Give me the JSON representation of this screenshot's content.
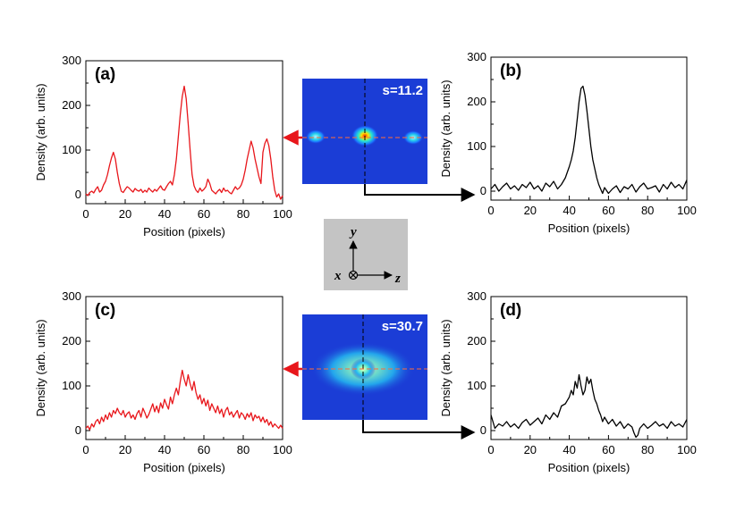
{
  "chart_data": [
    {
      "type": "line",
      "panel_label": "(a)",
      "color": "#e8161b",
      "xlabel": "Position (pixels)",
      "ylabel": "Density (arb. units)",
      "xlim": [
        0,
        100
      ],
      "ylim": [
        -20,
        300
      ],
      "xticks": [
        0,
        20,
        40,
        60,
        80,
        100
      ],
      "yticks": [
        0,
        100,
        200,
        300
      ],
      "x": [
        0,
        1,
        2,
        3,
        4,
        5,
        6,
        7,
        8,
        9,
        10,
        11,
        12,
        13,
        14,
        15,
        16,
        17,
        18,
        19,
        20,
        21,
        22,
        23,
        24,
        25,
        26,
        27,
        28,
        29,
        30,
        31,
        32,
        33,
        34,
        35,
        36,
        37,
        38,
        39,
        40,
        41,
        42,
        43,
        44,
        45,
        46,
        47,
        48,
        49,
        50,
        51,
        52,
        53,
        54,
        55,
        56,
        57,
        58,
        59,
        60,
        61,
        62,
        63,
        64,
        65,
        66,
        67,
        68,
        69,
        70,
        71,
        72,
        73,
        74,
        75,
        76,
        77,
        78,
        79,
        80,
        81,
        82,
        83,
        84,
        85,
        86,
        87,
        88,
        89,
        90,
        91,
        92,
        93,
        94,
        95,
        96,
        97,
        98,
        99,
        100
      ],
      "y": [
        2,
        -2,
        5,
        8,
        4,
        12,
        18,
        6,
        10,
        22,
        30,
        45,
        65,
        82,
        95,
        80,
        50,
        25,
        8,
        5,
        12,
        18,
        15,
        10,
        6,
        14,
        10,
        8,
        12,
        5,
        10,
        6,
        15,
        10,
        6,
        12,
        8,
        14,
        20,
        12,
        10,
        18,
        25,
        30,
        22,
        45,
        80,
        130,
        180,
        220,
        243,
        215,
        160,
        100,
        45,
        20,
        10,
        5,
        15,
        8,
        12,
        18,
        35,
        25,
        10,
        6,
        2,
        8,
        12,
        5,
        15,
        8,
        10,
        5,
        2,
        10,
        18,
        12,
        15,
        22,
        35,
        55,
        80,
        100,
        120,
        105,
        80,
        60,
        40,
        25,
        95,
        115,
        125,
        110,
        80,
        40,
        10,
        -5,
        2,
        -10,
        -2
      ]
    },
    {
      "type": "line",
      "panel_label": "(b)",
      "color": "#000000",
      "xlabel": "Position (pixels)",
      "ylabel": "Density (arb. units)",
      "xlim": [
        0,
        100
      ],
      "ylim": [
        -20,
        300
      ],
      "xticks": [
        0,
        20,
        40,
        60,
        80,
        100
      ],
      "yticks": [
        0,
        100,
        200,
        300
      ],
      "x": [
        0,
        2,
        4,
        6,
        8,
        10,
        12,
        14,
        16,
        18,
        20,
        22,
        24,
        26,
        28,
        30,
        32,
        34,
        36,
        38,
        40,
        41,
        42,
        43,
        44,
        45,
        46,
        47,
        48,
        49,
        50,
        51,
        52,
        53,
        54,
        55,
        56,
        57,
        58,
        60,
        62,
        64,
        66,
        68,
        70,
        72,
        74,
        76,
        78,
        80,
        82,
        84,
        86,
        88,
        90,
        92,
        94,
        96,
        98,
        100
      ],
      "y": [
        5,
        15,
        0,
        10,
        18,
        5,
        12,
        2,
        15,
        8,
        20,
        5,
        12,
        0,
        18,
        10,
        22,
        5,
        15,
        30,
        55,
        70,
        90,
        120,
        160,
        200,
        230,
        235,
        215,
        180,
        140,
        100,
        70,
        50,
        30,
        15,
        5,
        -5,
        8,
        -5,
        5,
        12,
        -3,
        10,
        5,
        15,
        -2,
        10,
        18,
        5,
        8,
        12,
        -2,
        15,
        5,
        20,
        8,
        15,
        5,
        25
      ]
    },
    {
      "type": "line",
      "panel_label": "(c)",
      "color": "#e8161b",
      "xlabel": "Position (pixels)",
      "ylabel": "Density (arb. units)",
      "xlim": [
        0,
        100
      ],
      "ylim": [
        -20,
        300
      ],
      "xticks": [
        0,
        20,
        40,
        60,
        80,
        100
      ],
      "yticks": [
        0,
        100,
        200,
        300
      ],
      "x": [
        0,
        1,
        2,
        3,
        4,
        5,
        6,
        7,
        8,
        9,
        10,
        11,
        12,
        13,
        14,
        15,
        16,
        17,
        18,
        19,
        20,
        21,
        22,
        23,
        24,
        25,
        26,
        27,
        28,
        29,
        30,
        31,
        32,
        33,
        34,
        35,
        36,
        37,
        38,
        39,
        40,
        41,
        42,
        43,
        44,
        45,
        46,
        47,
        48,
        49,
        50,
        51,
        52,
        53,
        54,
        55,
        56,
        57,
        58,
        59,
        60,
        61,
        62,
        63,
        64,
        65,
        66,
        67,
        68,
        69,
        70,
        71,
        72,
        73,
        74,
        75,
        76,
        77,
        78,
        79,
        80,
        81,
        82,
        83,
        84,
        85,
        86,
        87,
        88,
        89,
        90,
        91,
        92,
        93,
        94,
        95,
        96,
        97,
        98,
        99,
        100
      ],
      "y": [
        5,
        10,
        2,
        15,
        8,
        20,
        25,
        15,
        30,
        20,
        35,
        25,
        40,
        30,
        45,
        38,
        50,
        40,
        35,
        45,
        30,
        38,
        42,
        28,
        35,
        25,
        38,
        45,
        30,
        50,
        40,
        28,
        36,
        48,
        60,
        42,
        55,
        40,
        62,
        50,
        70,
        58,
        48,
        75,
        60,
        80,
        95,
        80,
        110,
        135,
        115,
        100,
        125,
        105,
        90,
        110,
        85,
        70,
        80,
        60,
        72,
        55,
        68,
        45,
        60,
        50,
        40,
        55,
        38,
        48,
        30,
        45,
        52,
        35,
        42,
        30,
        38,
        45,
        28,
        40,
        35,
        25,
        38,
        30,
        40,
        22,
        35,
        28,
        32,
        20,
        30,
        18,
        25,
        12,
        20,
        8,
        15,
        10,
        5,
        12,
        5
      ]
    },
    {
      "type": "line",
      "panel_label": "(d)",
      "color": "#000000",
      "xlabel": "Position (pixels)",
      "ylabel": "Density (arb. units)",
      "xlim": [
        0,
        100
      ],
      "ylim": [
        -20,
        300
      ],
      "xticks": [
        0,
        20,
        40,
        60,
        80,
        100
      ],
      "yticks": [
        0,
        100,
        200,
        300
      ],
      "x": [
        0,
        2,
        4,
        6,
        8,
        10,
        12,
        14,
        16,
        18,
        20,
        22,
        24,
        26,
        28,
        30,
        32,
        34,
        36,
        38,
        40,
        41,
        42,
        43,
        44,
        45,
        46,
        47,
        48,
        49,
        50,
        51,
        52,
        53,
        54,
        55,
        56,
        57,
        58,
        60,
        62,
        64,
        66,
        68,
        70,
        72,
        73,
        74,
        75,
        76,
        78,
        80,
        82,
        84,
        86,
        88,
        90,
        92,
        94,
        96,
        98,
        100
      ],
      "y": [
        35,
        5,
        15,
        10,
        20,
        8,
        15,
        5,
        18,
        25,
        12,
        20,
        28,
        15,
        35,
        25,
        40,
        30,
        55,
        60,
        75,
        90,
        80,
        110,
        95,
        125,
        100,
        80,
        90,
        120,
        105,
        115,
        90,
        70,
        60,
        45,
        35,
        20,
        30,
        15,
        25,
        10,
        20,
        5,
        15,
        8,
        -5,
        -15,
        -10,
        5,
        15,
        5,
        12,
        20,
        10,
        15,
        5,
        20,
        10,
        15,
        8,
        25
      ]
    }
  ],
  "insets": [
    {
      "label": "s=11.2"
    },
    {
      "label": "s=30.7"
    }
  ],
  "coordinate_box": {
    "y_label": "y",
    "x_label": "x",
    "z_label": "z"
  }
}
